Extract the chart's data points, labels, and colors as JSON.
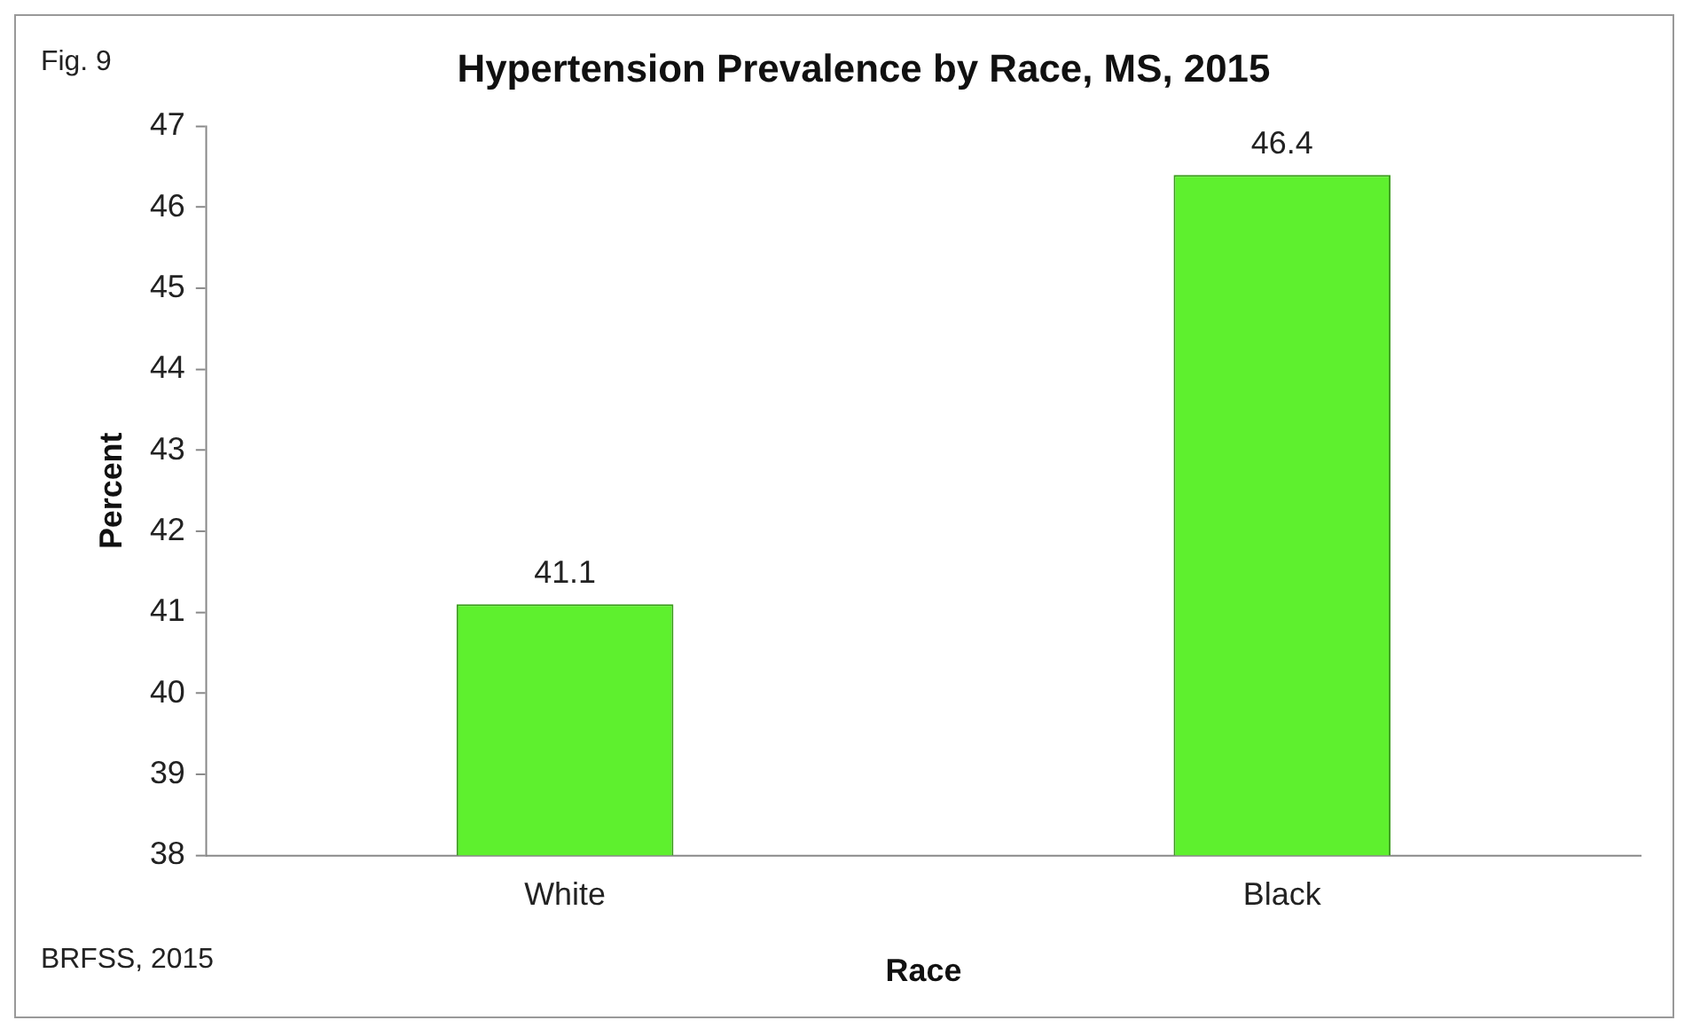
{
  "chart_data": {
    "type": "bar",
    "title": "Hypertension Prevalence by Race, MS, 2015",
    "xlabel": "Race",
    "ylabel": "Percent",
    "categories": [
      "White",
      "Black"
    ],
    "values": [
      41.1,
      46.4
    ],
    "color": "#5ef02e",
    "ylim": [
      38,
      47
    ],
    "yticks": [
      38,
      39,
      40,
      41,
      42,
      43,
      44,
      45,
      46,
      47
    ],
    "grid": false,
    "legend": false,
    "data_labels": true,
    "annotations": [
      "Fig. 9",
      "BRFSS, 2015"
    ]
  }
}
